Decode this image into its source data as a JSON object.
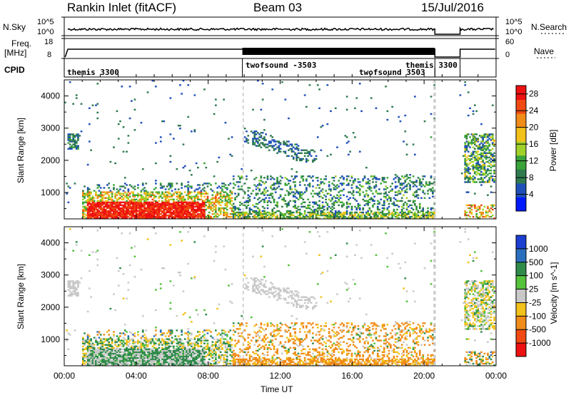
{
  "header": {
    "station": "Rankin Inlet (fitACF)",
    "beam": "Beam 03",
    "date": "15/Jul/2016"
  },
  "strip_labels": {
    "nsky": "N.Sky",
    "nsky_tick_top": "10^5",
    "nsky_tick_bottom": "10^0",
    "nsearch": "N.Search",
    "nsearch_tick_top": "10^5",
    "nsearch_tick_bottom": "10^0",
    "freq": "Freq.",
    "freq_unit": "[MHz]",
    "freq_tick_top": "18",
    "freq_tick_bottom": "8",
    "nave": "Nave",
    "nave_tick_top": "60",
    "nave_tick_bottom": "0",
    "cpid": "CPID"
  },
  "cpid_segments": [
    {
      "label": "themis 3300"
    },
    {
      "label": "twofsound -3503"
    },
    {
      "label": "twofsound 3503"
    },
    {
      "label": "themis 3300"
    }
  ],
  "colors": {
    "power_scale": [
      "#0019ff",
      "#1f4fb8",
      "#2f7a4e",
      "#39a33a",
      "#9fd12a",
      "#f2c21a",
      "#f08c1a",
      "#f04a12",
      "#ee1111"
    ],
    "velocity_scale": [
      "#1b3fd0",
      "#2a6fbf",
      "#2e8b4a",
      "#55c23c",
      "#c8c8c8",
      "#f2c21a",
      "#f08c1a",
      "#f04a12",
      "#ee1111"
    ]
  },
  "chart_data": [
    {
      "type": "heatmap",
      "quantity": "Power",
      "ylabel": "Slant Range [km]",
      "yticks": [
        1000,
        2000,
        3000,
        4000
      ],
      "xticks": [
        "00:00",
        "04:00",
        "08:00",
        "12:00",
        "16:00",
        "20:00",
        "00:00"
      ],
      "colorbar_label": "Power [dB]",
      "colorbar_ticks": [
        4,
        8,
        12,
        16,
        20,
        24,
        28
      ],
      "xlim_hours": [
        0,
        24
      ],
      "ylim_km": [
        180,
        4500
      ]
    },
    {
      "type": "heatmap",
      "quantity": "Velocity",
      "ylabel": "Slant Range [km]",
      "yticks": [
        1000,
        2000,
        3000,
        4000
      ],
      "xticks": [
        "00:00",
        "04:00",
        "08:00",
        "12:00",
        "16:00",
        "20:00",
        "00:00"
      ],
      "xlabel": "Time UT",
      "colorbar_label": "Velocity [m s^-1]",
      "colorbar_ticks": [
        1000,
        500,
        100,
        25,
        -25,
        -100,
        -500,
        -1000
      ],
      "xlim_hours": [
        0,
        24
      ],
      "ylim_km": [
        180,
        4500
      ]
    }
  ]
}
